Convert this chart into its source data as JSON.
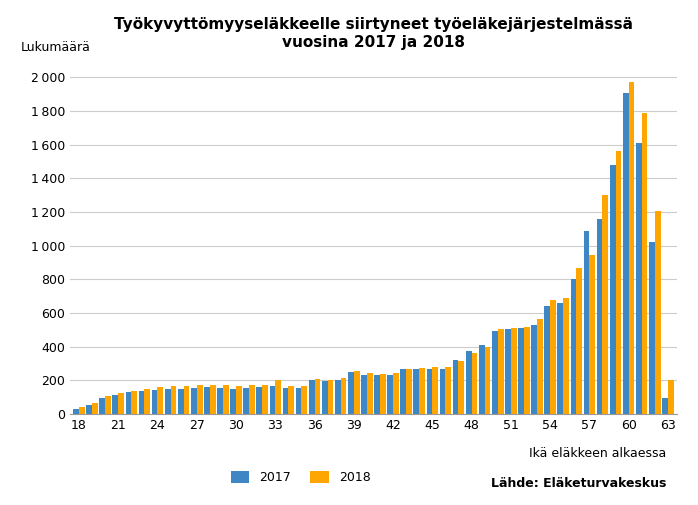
{
  "title": "Työkyvyttömyyseläkkeelle siirtyneet työeläkejärjestelmässä\nvuosina 2017 ja 2018",
  "ylabel": "Lukumäärä",
  "xlabel": "Ikä eläkkeen alkaessa",
  "source": "Lähde: Eläketurvakeskus",
  "color_2017": "#3F86C4",
  "color_2018": "#FFA500",
  "ages": [
    18,
    19,
    20,
    21,
    22,
    23,
    24,
    25,
    26,
    27,
    28,
    29,
    30,
    31,
    32,
    33,
    34,
    35,
    36,
    37,
    38,
    39,
    40,
    41,
    42,
    43,
    44,
    45,
    46,
    47,
    48,
    49,
    50,
    51,
    52,
    53,
    54,
    55,
    56,
    57,
    58,
    59,
    60,
    61,
    62,
    63
  ],
  "values_2017": [
    30,
    55,
    95,
    115,
    130,
    140,
    145,
    150,
    150,
    155,
    160,
    155,
    150,
    155,
    160,
    165,
    155,
    155,
    200,
    195,
    200,
    250,
    235,
    230,
    235,
    265,
    270,
    270,
    265,
    320,
    375,
    410,
    495,
    505,
    510,
    530,
    645,
    660,
    800,
    1090,
    1160,
    1480,
    1905,
    1610,
    1025,
    95
  ],
  "values_2018": [
    45,
    65,
    105,
    125,
    140,
    150,
    160,
    165,
    165,
    175,
    175,
    170,
    165,
    170,
    175,
    200,
    165,
    165,
    210,
    205,
    215,
    255,
    245,
    240,
    245,
    270,
    275,
    280,
    280,
    315,
    365,
    400,
    505,
    510,
    520,
    565,
    680,
    690,
    870,
    945,
    1300,
    1565,
    1975,
    1790,
    1205,
    205
  ],
  "ylim": [
    0,
    2100
  ],
  "yticks": [
    0,
    200,
    400,
    600,
    800,
    1000,
    1200,
    1400,
    1600,
    1800,
    2000
  ],
  "background_color": "#FFFFFF",
  "grid_color": "#CCCCCC"
}
